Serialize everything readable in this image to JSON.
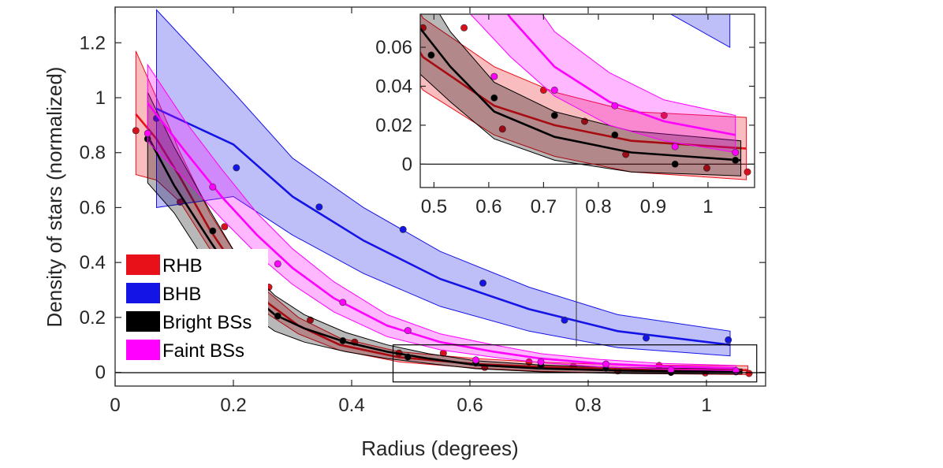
{
  "chart_data": {
    "type": "line",
    "xlabel": "Radius (degrees)",
    "ylabel": "Density of stars (normalized)",
    "xlim": [
      0,
      1.1
    ],
    "ylim": [
      -0.05,
      1.33
    ],
    "xticks": [
      0,
      0.2,
      0.4,
      0.6,
      0.8,
      1
    ],
    "yticks": [
      0,
      0.2,
      0.4,
      0.6,
      0.8,
      1,
      1.2
    ],
    "xtick_labels": [
      "0",
      "0.2",
      "0.4",
      "0.6",
      "0.8",
      "1"
    ],
    "ytick_labels": [
      "0",
      "0.2",
      "0.4",
      "0.6",
      "0.8",
      "1",
      "1.2"
    ],
    "grid": false,
    "legend_position": "lower-left",
    "series": [
      {
        "name": "RHB",
        "color": "#e8111a",
        "line": {
          "x": [
            0.035,
            0.07,
            0.11,
            0.16,
            0.21,
            0.26,
            0.31,
            0.38,
            0.48,
            0.61,
            0.72,
            0.86,
            1.07
          ],
          "y": [
            0.94,
            0.85,
            0.71,
            0.52,
            0.36,
            0.25,
            0.17,
            0.1,
            0.055,
            0.03,
            0.02,
            0.012,
            0.008
          ]
        },
        "band_upper": [
          1.17,
          1.0,
          0.8,
          0.58,
          0.41,
          0.29,
          0.2,
          0.125,
          0.075,
          0.05,
          0.037,
          0.027,
          0.024
        ],
        "band_lower": [
          0.72,
          0.7,
          0.62,
          0.45,
          0.31,
          0.21,
          0.14,
          0.08,
          0.038,
          0.015,
          0.004,
          -0.004,
          -0.008
        ],
        "points": {
          "x": [
            0.035,
            0.11,
            0.185,
            0.26,
            0.33,
            0.405,
            0.48,
            0.555,
            0.625,
            0.7,
            0.775,
            0.85,
            0.92,
            0.998,
            1.072
          ],
          "y": [
            0.88,
            0.62,
            0.53,
            0.31,
            0.19,
            0.11,
            0.07,
            0.07,
            0.018,
            0.038,
            0.022,
            0.005,
            0.025,
            -0.002,
            -0.004
          ]
        }
      },
      {
        "name": "BHB",
        "color": "#1414e6",
        "line": {
          "x": [
            0.07,
            0.2,
            0.3,
            0.42,
            0.55,
            0.7,
            0.85,
            1.04
          ],
          "y": [
            0.96,
            0.83,
            0.64,
            0.48,
            0.34,
            0.23,
            0.15,
            0.1
          ]
        },
        "band_upper": [
          1.32,
          1.02,
          0.78,
          0.6,
          0.44,
          0.31,
          0.21,
          0.15
        ],
        "band_lower": [
          0.6,
          0.64,
          0.5,
          0.36,
          0.24,
          0.15,
          0.09,
          0.06
        ],
        "points": {
          "x": [
            0.07,
            0.205,
            0.345,
            0.487,
            0.622,
            0.76,
            0.898,
            1.037
          ],
          "y": [
            0.925,
            0.745,
            0.602,
            0.52,
            0.325,
            0.19,
            0.125,
            0.118
          ]
        }
      },
      {
        "name": "Bright BSs",
        "color": "#000000",
        "line": {
          "x": [
            0.055,
            0.1,
            0.16,
            0.21,
            0.27,
            0.32,
            0.39,
            0.46,
            0.53,
            0.61,
            0.72,
            0.86,
            1.06
          ],
          "y": [
            0.86,
            0.68,
            0.48,
            0.32,
            0.21,
            0.16,
            0.11,
            0.075,
            0.05,
            0.027,
            0.014,
            0.006,
            0.002
          ]
        },
        "band_upper": [
          1.02,
          0.82,
          0.59,
          0.41,
          0.28,
          0.21,
          0.145,
          0.1,
          0.068,
          0.042,
          0.027,
          0.017,
          0.012
        ],
        "band_lower": [
          0.69,
          0.58,
          0.38,
          0.24,
          0.15,
          0.11,
          0.075,
          0.05,
          0.032,
          0.013,
          0.002,
          -0.004,
          -0.006
        ],
        "points": {
          "x": [
            0.055,
            0.165,
            0.275,
            0.385,
            0.495,
            0.61,
            0.72,
            0.83,
            0.94,
            1.05
          ],
          "y": [
            0.85,
            0.515,
            0.205,
            0.115,
            0.056,
            0.034,
            0.025,
            0.015,
            0.0,
            0.002
          ]
        }
      },
      {
        "name": "Faint BSs",
        "color": "#ff00ff",
        "line": {
          "x": [
            0.055,
            0.12,
            0.18,
            0.24,
            0.3,
            0.37,
            0.46,
            0.55,
            0.64,
            0.72,
            0.82,
            0.92,
            1.05
          ],
          "y": [
            0.98,
            0.8,
            0.64,
            0.5,
            0.38,
            0.27,
            0.17,
            0.11,
            0.075,
            0.05,
            0.032,
            0.022,
            0.015
          ]
        },
        "band_upper": [
          1.12,
          0.91,
          0.74,
          0.58,
          0.45,
          0.33,
          0.21,
          0.14,
          0.1,
          0.068,
          0.047,
          0.033,
          0.025
        ],
        "band_lower": [
          0.84,
          0.7,
          0.56,
          0.43,
          0.32,
          0.22,
          0.13,
          0.082,
          0.055,
          0.035,
          0.02,
          0.012,
          0.006
        ],
        "points": {
          "x": [
            0.055,
            0.165,
            0.275,
            0.385,
            0.495,
            0.61,
            0.72,
            0.83,
            0.94,
            1.05
          ],
          "y": [
            0.87,
            0.675,
            0.395,
            0.255,
            0.152,
            0.045,
            0.038,
            0.03,
            0.009,
            0.006
          ]
        }
      }
    ],
    "inset": {
      "xlim": [
        0.475,
        1.085
      ],
      "ylim": [
        -0.012,
        0.077
      ],
      "xticks": [
        0.5,
        0.6,
        0.7,
        0.8,
        0.9,
        1
      ],
      "yticks": [
        0,
        0.02,
        0.04,
        0.06
      ],
      "xtick_labels": [
        "0.5",
        "0.6",
        "0.7",
        "0.8",
        "0.9",
        "1"
      ],
      "ytick_labels": [
        "0",
        "0.02",
        "0.04",
        "0.06"
      ],
      "zoom_region": {
        "x": [
          0.47,
          1.085
        ],
        "y": [
          -0.035,
          0.1
        ]
      }
    }
  }
}
